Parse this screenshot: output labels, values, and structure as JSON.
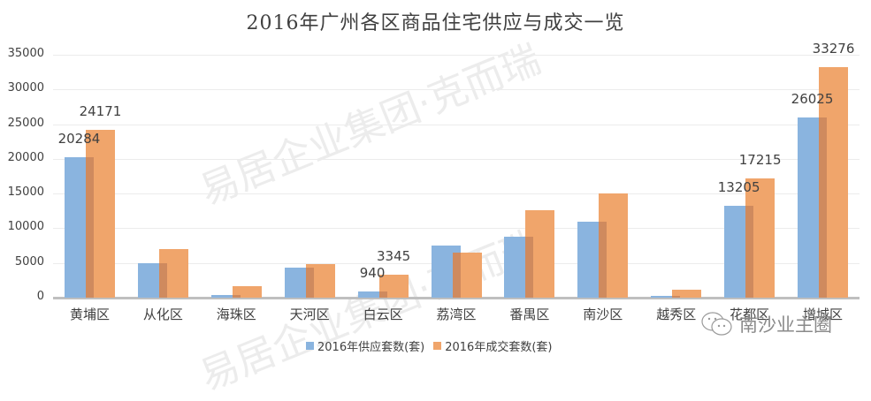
{
  "chart_data": {
    "type": "bar",
    "title": "2016年广州各区商品住宅供应与成交一览",
    "xlabel": "",
    "ylabel": "",
    "ylim": [
      0,
      35000
    ],
    "yticks": [
      0,
      5000,
      10000,
      15000,
      20000,
      25000,
      30000,
      35000
    ],
    "grid": true,
    "legend_position": "bottom",
    "categories": [
      "黄埔区",
      "从化区",
      "海珠区",
      "天河区",
      "白云区",
      "荔湾区",
      "番禺区",
      "南沙区",
      "越秀区",
      "花都区",
      "增城区"
    ],
    "series": [
      {
        "name": "2016年供应套数(套)",
        "color": "#8ab4df",
        "values": [
          20284,
          5000,
          400,
          4300,
          940,
          7500,
          8800,
          10950,
          300,
          13205,
          26025
        ]
      },
      {
        "name": "2016年成交套数(套)",
        "color": "#f0a56b",
        "values": [
          24171,
          7000,
          1650,
          4850,
          3345,
          6500,
          12600,
          15000,
          1150,
          17215,
          33276
        ]
      }
    ],
    "data_labels": {
      "黄埔区": {
        "supply": "20284",
        "deal": "24171"
      },
      "白云区": {
        "supply": "940",
        "deal": "3345"
      },
      "花都区": {
        "supply": "13205",
        "deal": "17215"
      },
      "增城区": {
        "supply": "26025",
        "deal": "33276"
      }
    }
  },
  "watermarks": {
    "center": "易居企业集团·克而瑞",
    "account": "南沙业主圈"
  }
}
